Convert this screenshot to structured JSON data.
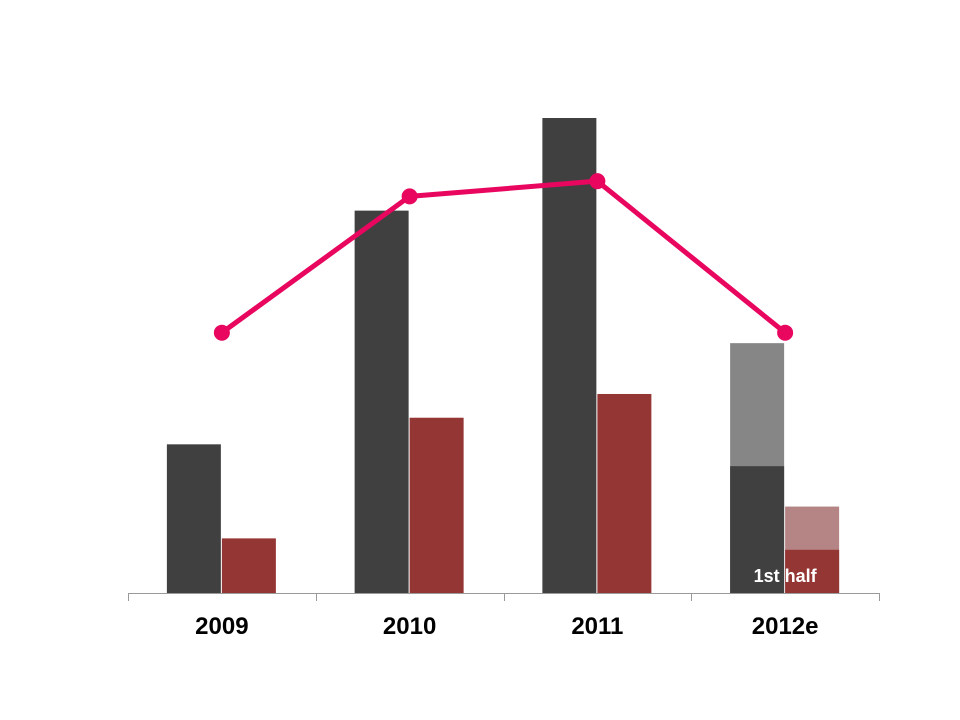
{
  "chart_data": {
    "type": "bar",
    "categories": [
      "2009",
      "2010",
      "2011",
      "2012e"
    ],
    "ylim": [
      0,
      100
    ],
    "grid": false,
    "legend": "none",
    "series": [
      {
        "kind": "bar",
        "color": "#404040",
        "values": [
          31.3,
          80.5,
          100,
          26.7
        ]
      },
      {
        "kind": "bar",
        "color": "#943634",
        "values": [
          11.5,
          36.9,
          41.9,
          9.1
        ]
      },
      {
        "kind": "line",
        "color": "#e8065f",
        "values": [
          54.8,
          83.5,
          86.7,
          54.8
        ]
      }
    ],
    "projection": {
      "category": "2012e",
      "bar_1_total": 52.6,
      "bar_1_color": "#868686",
      "bar_2_total": 18.2,
      "bar_2_color": "#b58585"
    },
    "annotations": [
      {
        "category": "2012e",
        "text": "1st half"
      }
    ]
  }
}
